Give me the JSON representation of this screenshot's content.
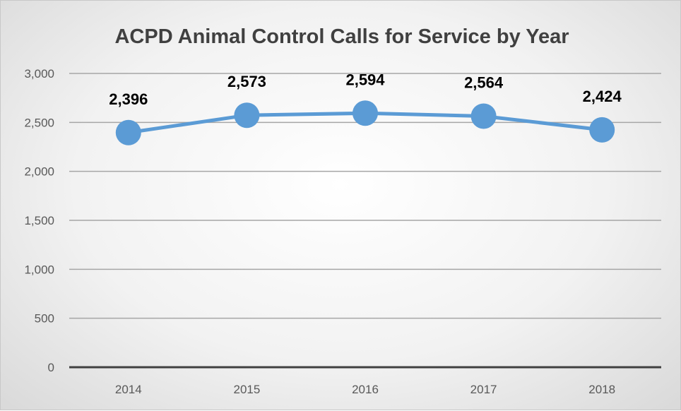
{
  "chart_data": {
    "type": "line",
    "title": "ACPD Animal Control Calls for Service by Year",
    "categories": [
      "2014",
      "2015",
      "2016",
      "2017",
      "2018"
    ],
    "series": [
      {
        "values": [
          2396,
          2573,
          2594,
          2564,
          2424
        ],
        "data_labels": [
          "2,396",
          "2,573",
          "2,594",
          "2,564",
          "2,424"
        ],
        "color": "#5b9bd5"
      }
    ],
    "y_ticks": [
      "0",
      "500",
      "1,000",
      "1,500",
      "2,000",
      "2,500",
      "3,000"
    ],
    "ylim": [
      0,
      3000
    ],
    "grid": true,
    "legend": "none",
    "xlabel": "",
    "ylabel": ""
  }
}
